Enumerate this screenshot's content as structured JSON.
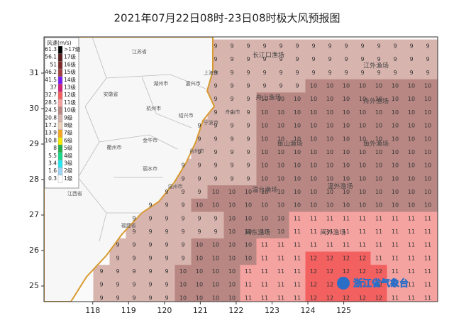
{
  "title": "2021年07月22日08时-23日08时极大风预报图",
  "legend": {
    "title": "风速(m/s)",
    "items": [
      {
        "speed": 61.3,
        "label": ">17级",
        "color": "#000000"
      },
      {
        "speed": 56.1,
        "label": "17级",
        "color": "#5a1e1e"
      },
      {
        "speed": 51.0,
        "label": "16级",
        "color": "#7d2a2a"
      },
      {
        "speed": 46.2,
        "label": "15级",
        "color": "#a04040"
      },
      {
        "speed": 41.5,
        "label": "14级",
        "color": "#7a1cf0"
      },
      {
        "speed": 37.0,
        "label": "13级",
        "color": "#d0207a"
      },
      {
        "speed": 32.7,
        "label": "12级",
        "color": "#f26060"
      },
      {
        "speed": 28.5,
        "label": "11级",
        "color": "#f4a3a0"
      },
      {
        "speed": 24.5,
        "label": "10级",
        "color": "#b88783"
      },
      {
        "speed": 20.8,
        "label": "9级",
        "color": "#d8b4ae"
      },
      {
        "speed": 17.2,
        "label": "8级",
        "color": "#ecd0b8"
      },
      {
        "speed": 13.9,
        "label": "7级",
        "color": "#f5a623"
      },
      {
        "speed": 10.8,
        "label": "6级",
        "color": "#f2e800"
      },
      {
        "speed": 8.0,
        "label": "5级",
        "color": "#22b04a"
      },
      {
        "speed": 5.5,
        "label": "4级",
        "color": "#19d98a"
      },
      {
        "speed": 3.4,
        "label": "3级",
        "color": "#28e6f0"
      },
      {
        "speed": 1.6,
        "label": "2级",
        "color": "#9ed4f5"
      },
      {
        "speed": 0.3,
        "label": "1级",
        "color": "#ffffff"
      }
    ]
  },
  "axes": {
    "xlim": [
      116.64,
      127.62
    ],
    "ylim": [
      24.56,
      32.02
    ],
    "xticks": [
      118,
      119,
      120,
      121,
      122,
      123,
      124,
      125
    ],
    "yticks": [
      25,
      26,
      27,
      28,
      29,
      30,
      31
    ]
  },
  "places": [
    {
      "name": "江苏省",
      "lon": 119.3,
      "lat": 31.6
    },
    {
      "name": "上海市",
      "lon": 121.3,
      "lat": 31.0
    },
    {
      "name": "湖州市",
      "lon": 119.9,
      "lat": 30.7
    },
    {
      "name": "嘉兴市",
      "lon": 120.8,
      "lat": 30.7
    },
    {
      "name": "安徽省",
      "lon": 118.5,
      "lat": 30.4
    },
    {
      "name": "杭州市",
      "lon": 119.7,
      "lat": 30.0
    },
    {
      "name": "绍兴市",
      "lon": 120.6,
      "lat": 29.8
    },
    {
      "name": "宁波市",
      "lon": 121.3,
      "lat": 29.6
    },
    {
      "name": "舟山市",
      "lon": 121.9,
      "lat": 29.9
    },
    {
      "name": "衢州市",
      "lon": 118.6,
      "lat": 28.9
    },
    {
      "name": "金华市",
      "lon": 119.6,
      "lat": 29.1
    },
    {
      "name": "台州市",
      "lon": 120.9,
      "lat": 28.8
    },
    {
      "name": "丽水市",
      "lon": 119.6,
      "lat": 28.3
    },
    {
      "name": "温州市",
      "lon": 120.3,
      "lat": 27.8
    },
    {
      "name": "福建省",
      "lon": 119.0,
      "lat": 26.7
    },
    {
      "name": "江西省",
      "lon": 117.5,
      "lat": 27.6
    }
  ],
  "fishing": [
    {
      "name": "长江口渔场",
      "lon": 122.9,
      "lat": 31.5
    },
    {
      "name": "江外渔场",
      "lon": 125.9,
      "lat": 31.2
    },
    {
      "name": "舟山渔场",
      "lon": 122.9,
      "lat": 30.3
    },
    {
      "name": "舟外渔场",
      "lon": 125.9,
      "lat": 30.2
    },
    {
      "name": "鱼山渔场",
      "lon": 123.5,
      "lat": 29.0
    },
    {
      "name": "鱼外渔场",
      "lon": 125.9,
      "lat": 29.0
    },
    {
      "name": "温台渔场",
      "lon": 122.8,
      "lat": 27.7
    },
    {
      "name": "温外渔场",
      "lon": 124.9,
      "lat": 27.8
    },
    {
      "name": "闽东渔场",
      "lon": 122.6,
      "lat": 26.5
    },
    {
      "name": "闽外渔场",
      "lon": 124.7,
      "lat": 26.5
    }
  ],
  "grid": [
    [
      null,
      null,
      null,
      null,
      null,
      null,
      null,
      9,
      9,
      9,
      9,
      9,
      9,
      9,
      9,
      9,
      9,
      9,
      9,
      9,
      9
    ],
    [
      null,
      null,
      null,
      null,
      null,
      null,
      null,
      9,
      9,
      9,
      9,
      9,
      9,
      9,
      9,
      9,
      9,
      9,
      9,
      9,
      9
    ],
    [
      null,
      null,
      null,
      null,
      null,
      null,
      null,
      9,
      9,
      9,
      9,
      9,
      9,
      9,
      9,
      9,
      9,
      9,
      9,
      9,
      9
    ],
    [
      null,
      null,
      null,
      null,
      null,
      null,
      null,
      9,
      9,
      9,
      9,
      9,
      9,
      10,
      10,
      10,
      10,
      10,
      10,
      10,
      10
    ],
    [
      null,
      null,
      null,
      null,
      null,
      null,
      null,
      9,
      9,
      9,
      10,
      10,
      10,
      10,
      10,
      10,
      10,
      10,
      10,
      10,
      10
    ],
    [
      null,
      null,
      null,
      null,
      null,
      null,
      null,
      9,
      9,
      9,
      10,
      10,
      10,
      10,
      10,
      10,
      10,
      10,
      10,
      10,
      10
    ],
    [
      null,
      null,
      null,
      null,
      null,
      null,
      9,
      9,
      9,
      9,
      10,
      10,
      10,
      10,
      10,
      10,
      10,
      10,
      10,
      10,
      10
    ],
    [
      null,
      null,
      null,
      null,
      null,
      null,
      9,
      9,
      9,
      9,
      10,
      10,
      10,
      10,
      10,
      10,
      10,
      10,
      10,
      10,
      10
    ],
    [
      null,
      null,
      null,
      null,
      null,
      null,
      9,
      9,
      9,
      9,
      10,
      10,
      10,
      10,
      10,
      10,
      10,
      10,
      10,
      10,
      10
    ],
    [
      null,
      null,
      null,
      null,
      null,
      9,
      9,
      9,
      9,
      9,
      10,
      10,
      10,
      10,
      10,
      10,
      10,
      10,
      10,
      10,
      10
    ],
    [
      null,
      null,
      null,
      null,
      null,
      9,
      9,
      9,
      9,
      9,
      10,
      10,
      10,
      10,
      10,
      10,
      10,
      10,
      10,
      10,
      10
    ],
    [
      null,
      null,
      null,
      null,
      9,
      9,
      9,
      10,
      10,
      10,
      10,
      10,
      10,
      10,
      10,
      10,
      10,
      10,
      10,
      10,
      10
    ],
    [
      null,
      null,
      null,
      9,
      9,
      9,
      10,
      10,
      10,
      10,
      10,
      10,
      10,
      10,
      10,
      10,
      10,
      10,
      10,
      10,
      10
    ],
    [
      null,
      null,
      9,
      9,
      9,
      9,
      9,
      9,
      10,
      10,
      10,
      10,
      11,
      11,
      11,
      11,
      11,
      11,
      11,
      11,
      11
    ],
    [
      null,
      null,
      9,
      9,
      9,
      9,
      9,
      9,
      10,
      10,
      10,
      10,
      11,
      11,
      11,
      11,
      11,
      11,
      11,
      11,
      11
    ],
    [
      null,
      9,
      9,
      9,
      9,
      9,
      10,
      10,
      10,
      10,
      11,
      11,
      11,
      11,
      11,
      11,
      11,
      11,
      11,
      11,
      11
    ],
    [
      null,
      9,
      9,
      9,
      9,
      9,
      10,
      10,
      10,
      10,
      11,
      11,
      11,
      12,
      12,
      12,
      12,
      11,
      11,
      11,
      11
    ],
    [
      9,
      9,
      9,
      9,
      9,
      10,
      10,
      10,
      10,
      11,
      11,
      11,
      11,
      12,
      12,
      12,
      12,
      12,
      11,
      11,
      11
    ],
    [
      9,
      9,
      9,
      9,
      9,
      10,
      10,
      10,
      10,
      11,
      11,
      11,
      11,
      12,
      12,
      12,
      12,
      12,
      11,
      11,
      11
    ],
    [
      9,
      9,
      9,
      9,
      9,
      10,
      10,
      10,
      10,
      11,
      11,
      11,
      11,
      12,
      12,
      12,
      12,
      12,
      11,
      11,
      11
    ]
  ],
  "logo": "浙江省气象台"
}
